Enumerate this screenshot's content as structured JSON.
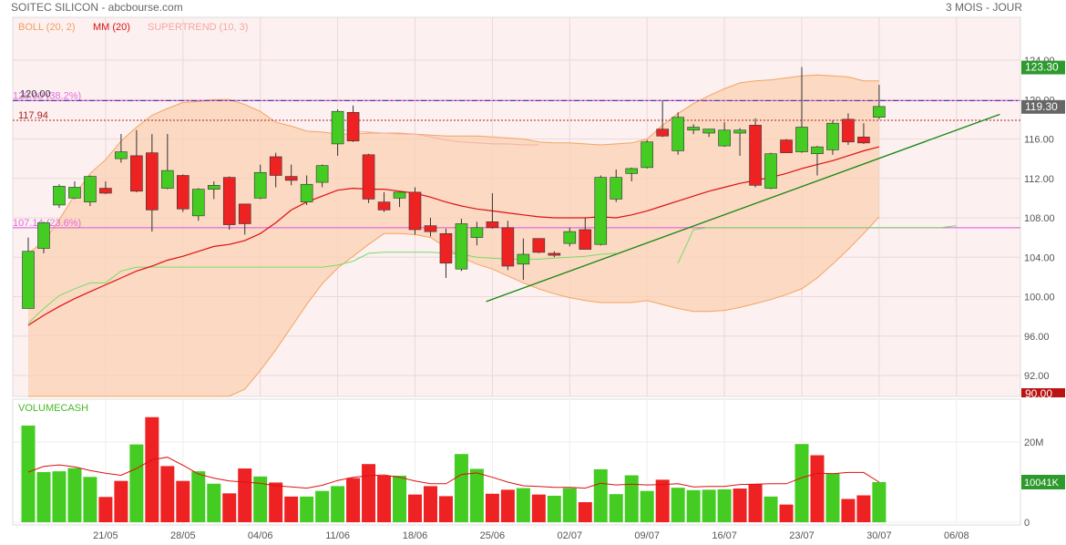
{
  "header": {
    "title": "SOITEC SILICON - abcbourse.com",
    "period": "3 MOIS - JOUR"
  },
  "legend": {
    "boll": "BOLL (20, 2)",
    "mm": "MM (20)",
    "supertrend": "SUPERTREND (10, 3)",
    "volume": "VOLUMECASH"
  },
  "colors": {
    "up": "#44cc22",
    "down": "#ee2222",
    "boll": "#f4a460",
    "mm": "#dd1111",
    "supertrend": "#77dd66",
    "trendline": "#118811",
    "fib": "#dd55dd",
    "last_badge": "#2e9a2e",
    "low_badge": "#bb1111"
  },
  "chart_data": [
    {
      "type": "candlestick",
      "title": "SOITEC SILICON",
      "ylim": [
        90,
        125
      ],
      "yticks": [
        "124.00",
        "120.00",
        "116.00",
        "112.00",
        "108.00",
        "104.00",
        "100.00",
        "96.00",
        "92.00"
      ],
      "xticks": [
        "21/05",
        "28/05",
        "04/06",
        "11/06",
        "18/06",
        "25/06",
        "02/07",
        "09/07",
        "16/07",
        "23/07",
        "30/07",
        "06/08"
      ],
      "candles": [
        {
          "o": 98.8,
          "h": 106.0,
          "l": 98.8,
          "c": 104.6
        },
        {
          "o": 104.9,
          "h": 107.6,
          "l": 104.4,
          "c": 107.5
        },
        {
          "o": 109.3,
          "h": 111.4,
          "l": 109.0,
          "c": 111.2
        },
        {
          "o": 110.0,
          "h": 111.7,
          "l": 109.9,
          "c": 111.1
        },
        {
          "o": 109.6,
          "h": 112.3,
          "l": 109.2,
          "c": 112.2
        },
        {
          "o": 111.0,
          "h": 111.7,
          "l": 110.4,
          "c": 110.5
        },
        {
          "o": 114.0,
          "h": 116.5,
          "l": 113.6,
          "c": 114.7
        },
        {
          "o": 114.3,
          "h": 116.9,
          "l": 110.6,
          "c": 110.7
        },
        {
          "o": 114.6,
          "h": 116.5,
          "l": 106.6,
          "c": 108.8
        },
        {
          "o": 111.0,
          "h": 116.5,
          "l": 110.9,
          "c": 112.8
        },
        {
          "o": 112.3,
          "h": 112.4,
          "l": 108.6,
          "c": 108.9
        },
        {
          "o": 108.2,
          "h": 111.0,
          "l": 107.7,
          "c": 110.9
        },
        {
          "o": 110.9,
          "h": 111.7,
          "l": 109.9,
          "c": 111.3
        },
        {
          "o": 112.1,
          "h": 112.2,
          "l": 106.8,
          "c": 107.3
        },
        {
          "o": 109.4,
          "h": 109.4,
          "l": 106.3,
          "c": 107.4
        },
        {
          "o": 110.0,
          "h": 113.4,
          "l": 109.9,
          "c": 112.6
        },
        {
          "o": 114.2,
          "h": 114.6,
          "l": 111.1,
          "c": 112.3
        },
        {
          "o": 112.2,
          "h": 113.4,
          "l": 111.3,
          "c": 111.8
        },
        {
          "o": 109.6,
          "h": 112.3,
          "l": 109.3,
          "c": 111.4
        },
        {
          "o": 111.6,
          "h": 113.4,
          "l": 111.1,
          "c": 113.3
        },
        {
          "o": 115.5,
          "h": 119.0,
          "l": 114.3,
          "c": 118.8
        },
        {
          "o": 118.7,
          "h": 119.4,
          "l": 115.7,
          "c": 115.8
        },
        {
          "o": 114.4,
          "h": 114.5,
          "l": 109.5,
          "c": 109.9
        },
        {
          "o": 109.6,
          "h": 110.6,
          "l": 108.6,
          "c": 108.8
        },
        {
          "o": 110.0,
          "h": 110.5,
          "l": 109.1,
          "c": 110.6
        },
        {
          "o": 110.6,
          "h": 111.1,
          "l": 106.3,
          "c": 106.8
        },
        {
          "o": 107.2,
          "h": 108.0,
          "l": 106.1,
          "c": 106.6
        },
        {
          "o": 106.4,
          "h": 106.9,
          "l": 101.9,
          "c": 103.4
        },
        {
          "o": 102.8,
          "h": 107.9,
          "l": 102.6,
          "c": 107.4
        },
        {
          "o": 106.0,
          "h": 107.6,
          "l": 105.2,
          "c": 107.0
        },
        {
          "o": 107.6,
          "h": 110.5,
          "l": 106.9,
          "c": 107.0
        },
        {
          "o": 107.0,
          "h": 107.7,
          "l": 102.7,
          "c": 103.1
        },
        {
          "o": 103.3,
          "h": 105.9,
          "l": 101.7,
          "c": 104.3
        },
        {
          "o": 105.9,
          "h": 105.9,
          "l": 104.4,
          "c": 104.5
        },
        {
          "o": 104.4,
          "h": 104.6,
          "l": 104.0,
          "c": 104.2
        },
        {
          "o": 105.4,
          "h": 107.0,
          "l": 105.1,
          "c": 106.6
        },
        {
          "o": 106.8,
          "h": 108.0,
          "l": 104.8,
          "c": 104.8
        },
        {
          "o": 105.3,
          "h": 112.3,
          "l": 105.2,
          "c": 112.1
        },
        {
          "o": 109.9,
          "h": 112.9,
          "l": 109.6,
          "c": 112.1
        },
        {
          "o": 112.5,
          "h": 113.1,
          "l": 111.7,
          "c": 113.0
        },
        {
          "o": 113.1,
          "h": 115.9,
          "l": 113.0,
          "c": 115.7
        },
        {
          "o": 117.0,
          "h": 119.9,
          "l": 116.2,
          "c": 116.3
        },
        {
          "o": 114.8,
          "h": 118.7,
          "l": 114.4,
          "c": 118.2
        },
        {
          "o": 116.9,
          "h": 117.5,
          "l": 116.5,
          "c": 117.2
        },
        {
          "o": 116.6,
          "h": 117.0,
          "l": 116.2,
          "c": 117.0
        },
        {
          "o": 115.3,
          "h": 117.7,
          "l": 115.2,
          "c": 116.9
        },
        {
          "o": 116.6,
          "h": 117.1,
          "l": 114.3,
          "c": 116.9
        },
        {
          "o": 117.4,
          "h": 118.1,
          "l": 111.1,
          "c": 111.3
        },
        {
          "o": 111.0,
          "h": 114.6,
          "l": 110.9,
          "c": 114.5
        },
        {
          "o": 115.9,
          "h": 116.0,
          "l": 114.6,
          "c": 114.6
        },
        {
          "o": 114.7,
          "h": 123.3,
          "l": 114.6,
          "c": 117.2
        },
        {
          "o": 114.5,
          "h": 115.3,
          "l": 112.3,
          "c": 115.2
        },
        {
          "o": 114.9,
          "h": 117.9,
          "l": 114.4,
          "c": 117.6
        },
        {
          "o": 118.0,
          "h": 118.6,
          "l": 115.4,
          "c": 115.7
        },
        {
          "o": 116.2,
          "h": 117.6,
          "l": 115.5,
          "c": 115.6
        },
        {
          "o": 118.2,
          "h": 121.5,
          "l": 118.0,
          "c": 119.3
        }
      ],
      "boll_upper": [
        104.4,
        105.6,
        107.8,
        110.3,
        112.5,
        113.9,
        115.8,
        117.2,
        118.4,
        119.1,
        119.7,
        119.8,
        120.0,
        120.0,
        119.5,
        118.8,
        117.7,
        117.3,
        116.8,
        116.7,
        116.5,
        116.5,
        116.6,
        116.6,
        116.6,
        116.5,
        116.4,
        116.3,
        116.3,
        116.3,
        116.2,
        116.1,
        116.0,
        115.7,
        115.6,
        115.6,
        115.5,
        115.4,
        115.5,
        115.6,
        116.0,
        117.4,
        118.6,
        119.6,
        120.4,
        121.1,
        121.7,
        121.9,
        122.0,
        122.2,
        122.4,
        122.5,
        122.4,
        122.3,
        121.9,
        121.9
      ],
      "boll_lower": [
        89.5,
        89.6,
        89.6,
        89.6,
        89.6,
        89.6,
        89.5,
        89.5,
        89.6,
        89.6,
        89.6,
        89.6,
        89.6,
        89.9,
        90.6,
        92.5,
        94.6,
        96.9,
        99.2,
        101.3,
        102.9,
        104.1,
        105.3,
        106.4,
        106.4,
        106.3,
        106.0,
        105.0,
        104.0,
        103.3,
        102.8,
        102.1,
        101.4,
        100.8,
        100.3,
        99.9,
        99.6,
        99.4,
        99.4,
        99.4,
        99.6,
        99.2,
        98.8,
        98.5,
        98.5,
        98.6,
        98.9,
        99.3,
        99.7,
        100.2,
        100.8,
        101.9,
        103.3,
        104.8,
        106.4,
        108.1
      ],
      "mm": [
        97.1,
        98.1,
        99.0,
        99.8,
        100.5,
        101.2,
        101.9,
        102.6,
        103.1,
        103.7,
        104.1,
        104.6,
        105.1,
        105.3,
        105.7,
        106.4,
        107.5,
        108.8,
        109.6,
        110.2,
        110.8,
        111.0,
        110.9,
        110.9,
        110.7,
        110.5,
        110.1,
        109.6,
        109.2,
        108.9,
        108.7,
        108.5,
        108.3,
        108.1,
        108.0,
        108.0,
        108.0,
        108.1,
        108.0,
        108.3,
        108.7,
        109.2,
        109.7,
        110.2,
        110.7,
        111.1,
        111.5,
        111.8,
        112.1,
        112.5,
        113.0,
        113.4,
        113.8,
        114.3,
        114.8,
        115.2
      ],
      "supertrend": [
        97.3,
        98.8,
        100.1,
        100.8,
        101.4,
        101.4,
        102.6,
        103.0,
        103.0,
        103.0,
        103.0,
        103.0,
        103.0,
        103.0,
        103.0,
        103.0,
        103.0,
        103.0,
        103.0,
        103.0,
        103.2,
        103.6,
        104.4,
        104.5,
        104.5,
        104.5,
        104.5,
        104.4,
        104.3,
        104.0,
        103.9,
        103.8,
        103.8,
        103.8,
        103.9,
        104.0,
        104.1,
        104.3,
        104.4
      ],
      "supertrend_upper": [
        117.0,
        116.8,
        116.7,
        116.6,
        116.5,
        116.5,
        116.2,
        115.9,
        115.7,
        115.6,
        115.5,
        115.5,
        115.4,
        115.4
      ],
      "supertrend_upper_start": 20,
      "supertrend2": [
        103.4,
        106.8,
        107.0,
        107.0,
        107.0,
        107.0,
        107.0,
        107.0,
        107.0,
        107.0,
        107.0,
        107.0,
        107.0,
        107.0,
        107.0,
        107.0,
        107.0,
        107.0,
        107.2
      ],
      "supertrend2_start": 42,
      "fib_levels": [
        {
          "label": "120.00",
          "pct": "(38.2%)",
          "value": 119.9
        },
        {
          "label": "107.14",
          "pct": "(23.6%)",
          "value": 107.0
        }
      ],
      "fib_label_top": "120.00",
      "ref_line": {
        "label": "117.94",
        "value": 117.9
      },
      "trendline": {
        "start_index": 29.6,
        "start_value": 99.5,
        "end_index": 62.8,
        "end_value": 118.5
      },
      "last_price": "119.30",
      "high_badge": "123.30",
      "low_badge": "90.00"
    },
    {
      "type": "bar",
      "title": "VOLUMECASH",
      "yticks": [
        "20M",
        "0"
      ],
      "ylim_m": [
        0,
        28
      ],
      "values_m": [
        24.1,
        12.5,
        12.7,
        13.5,
        11.3,
        6.3,
        10.3,
        19.4,
        26.2,
        14.0,
        10.3,
        12.7,
        9.6,
        7.2,
        13.4,
        11.4,
        9.9,
        6.4,
        6.4,
        7.8,
        9.0,
        11.0,
        14.5,
        11.6,
        11.6,
        6.9,
        9.0,
        6.5,
        17.0,
        13.3,
        7.1,
        8.1,
        8.5,
        6.9,
        6.6,
        8.5,
        5.0,
        13.2,
        7.0,
        11.7,
        7.8,
        10.6,
        8.6,
        8.0,
        8.1,
        8.2,
        8.4,
        9.5,
        6.4,
        4.4,
        19.5,
        16.7,
        12.2,
        5.8,
        6.7,
        10.0
      ],
      "up_flags": [
        1,
        1,
        1,
        1,
        1,
        0,
        0,
        1,
        0,
        0,
        0,
        1,
        1,
        0,
        0,
        1,
        0,
        0,
        1,
        1,
        1,
        0,
        0,
        0,
        1,
        0,
        0,
        0,
        1,
        1,
        0,
        0,
        1,
        0,
        1,
        1,
        0,
        1,
        1,
        1,
        1,
        0,
        1,
        1,
        1,
        1,
        0,
        0,
        1,
        0,
        1,
        0,
        1,
        0,
        0,
        1
      ],
      "mm_m": [
        12.5,
        13.9,
        14.3,
        13.8,
        12.9,
        12.2,
        11.7,
        13.4,
        15.6,
        16.2,
        14.2,
        12.0,
        11.0,
        10.3,
        10.0,
        9.7,
        9.1,
        8.8,
        8.5,
        9.2,
        10.4,
        11.2,
        11.6,
        11.8,
        11.2,
        10.3,
        9.6,
        9.6,
        11.9,
        12.3,
        11.2,
        10.0,
        9.1,
        8.9,
        8.7,
        8.7,
        8.5,
        9.7,
        9.3,
        9.5,
        9.3,
        9.4,
        9.6,
        8.8,
        8.9,
        8.9,
        9.4,
        9.5,
        9.6,
        9.6,
        11.1,
        12.2,
        12.1,
        12.4,
        12.4,
        10.0
      ],
      "last_value": "10041K"
    }
  ]
}
